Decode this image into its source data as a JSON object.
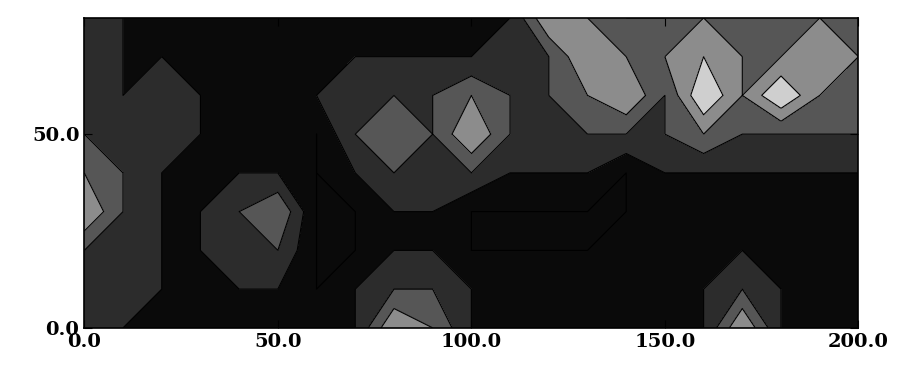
{
  "chart_data": {
    "type": "contour",
    "x": [
      0,
      10,
      20,
      30,
      40,
      50,
      60,
      70,
      80,
      90,
      100,
      110,
      120,
      130,
      140,
      150,
      160,
      170,
      180,
      190,
      200
    ],
    "y": [
      0,
      10,
      20,
      30,
      40,
      50,
      60,
      70,
      80
    ],
    "cells": [
      [
        2,
        1,
        1,
        1,
        1,
        1,
        1,
        1,
        4,
        3,
        1,
        1,
        1,
        1,
        1,
        1,
        1,
        4,
        1,
        1,
        1
      ],
      [
        2,
        2,
        1,
        1,
        1,
        1,
        0,
        1,
        2,
        2,
        1,
        1,
        1,
        1,
        1,
        1,
        1,
        2,
        1,
        1,
        1
      ],
      [
        2,
        2,
        1,
        1,
        2,
        2,
        0,
        0,
        1,
        1,
        0,
        0,
        0,
        0,
        1,
        1,
        1,
        1,
        1,
        1,
        1
      ],
      [
        4,
        2,
        1,
        1,
        2,
        3,
        0,
        0,
        1,
        1,
        0,
        0,
        0,
        0,
        0,
        1,
        1,
        1,
        1,
        1,
        1
      ],
      [
        3,
        2,
        1,
        1,
        1,
        1,
        0,
        1,
        2,
        2,
        2,
        1,
        1,
        1,
        0,
        1,
        1,
        1,
        1,
        1,
        1
      ],
      [
        2,
        2,
        2,
        1,
        1,
        1,
        0,
        2,
        3,
        2,
        4,
        2,
        2,
        2,
        2,
        2,
        3,
        2,
        2,
        2,
        2
      ],
      [
        2,
        1,
        2,
        1,
        1,
        1,
        1,
        2,
        2,
        2,
        3,
        2,
        2,
        3,
        4,
        2,
        5,
        3,
        5,
        3,
        3
      ],
      [
        2,
        1,
        1,
        1,
        1,
        1,
        1,
        1,
        1,
        1,
        1,
        2,
        2,
        4,
        3,
        3,
        4,
        3,
        3,
        4,
        3
      ],
      [
        2,
        1,
        1,
        1,
        1,
        1,
        1,
        1,
        1,
        1,
        1,
        1,
        4,
        3,
        2,
        2,
        3,
        3,
        2,
        3,
        3
      ]
    ],
    "levels": [
      0,
      1,
      2,
      3,
      4,
      5
    ],
    "colors": [
      "#0a0a0a",
      "#2c2c2c",
      "#565656",
      "#8c8c8c",
      "#cfcfcf"
    ],
    "xlim": [
      0,
      200
    ],
    "ylim": [
      0,
      80
    ],
    "xticks": [
      {
        "value": 0,
        "label": "0.0"
      },
      {
        "value": 50,
        "label": "50.0"
      },
      {
        "value": 100,
        "label": "100.0"
      },
      {
        "value": 150,
        "label": "150.0"
      },
      {
        "value": 200,
        "label": "200.0"
      }
    ],
    "yticks": [
      {
        "value": 0,
        "label": "0.0"
      },
      {
        "value": 50,
        "label": "50.0"
      }
    ]
  }
}
